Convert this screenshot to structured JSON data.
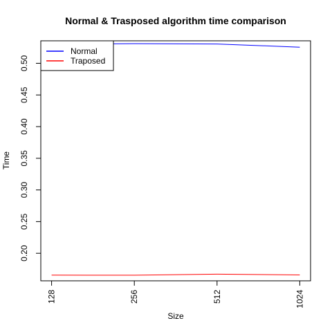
{
  "chart_data": {
    "type": "line",
    "title": "Normal & Trasposed algorithm time comparison",
    "xlabel": "Size",
    "ylabel": "Time",
    "categories": [
      "128",
      "256",
      "512",
      "1024"
    ],
    "yticks": [
      "0.20",
      "0.25",
      "0.30",
      "0.35",
      "0.40",
      "0.45",
      "0.50"
    ],
    "ylim": [
      0.1565,
      0.5355
    ],
    "series": [
      {
        "name": "Normal",
        "color": "#0000ff",
        "values": [
          0.53,
          0.531,
          0.5305,
          0.5255
        ]
      },
      {
        "name": "Traposed",
        "color": "#ff0000",
        "values": [
          0.1655,
          0.1653,
          0.167,
          0.1658
        ]
      }
    ],
    "legend_position": "top-left",
    "grid": false
  }
}
